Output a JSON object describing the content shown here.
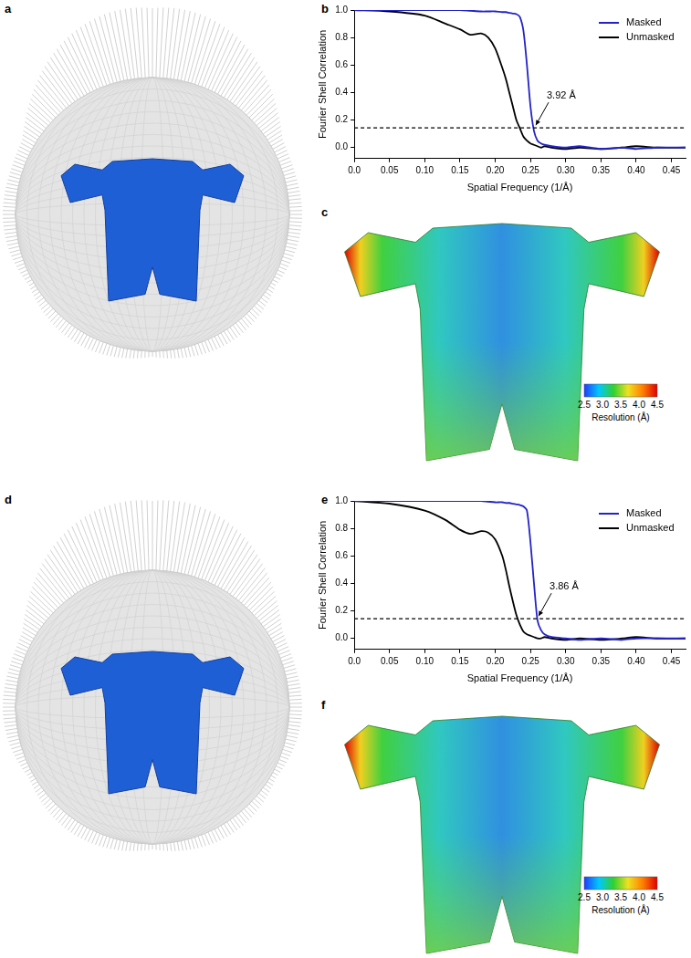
{
  "chart_data": [
    {
      "type": "line",
      "panel": "b",
      "x_label": "Spatial Frequency (1/Å)",
      "y_label": "Fourier Shell Correlation",
      "x": [
        0,
        0.05,
        0.1,
        0.13,
        0.15,
        0.165,
        0.18,
        0.19,
        0.2,
        0.21,
        0.215,
        0.22,
        0.225,
        0.23,
        0.235,
        0.24,
        0.245,
        0.25,
        0.255,
        0.26,
        0.265,
        0.27,
        0.28,
        0.3,
        0.32,
        0.35,
        0.38,
        0.4,
        0.43,
        0.47
      ],
      "series": [
        {
          "name": "Masked",
          "color": "#2323c8",
          "values": [
            1.0,
            1.0,
            1.0,
            1.0,
            1.0,
            0.995,
            0.99,
            0.99,
            0.99,
            0.985,
            0.985,
            0.98,
            0.975,
            0.97,
            0.95,
            0.85,
            0.6,
            0.3,
            0.12,
            0.05,
            0.03,
            0.02,
            0.01,
            0.0,
            0.01,
            -0.01,
            0.0,
            -0.01,
            0.0,
            0.0
          ]
        },
        {
          "name": "Unmasked",
          "color": "#000000",
          "values": [
            1.0,
            0.99,
            0.96,
            0.9,
            0.86,
            0.82,
            0.83,
            0.8,
            0.72,
            0.58,
            0.5,
            0.4,
            0.3,
            0.2,
            0.14,
            0.08,
            0.05,
            0.03,
            0.02,
            0.01,
            0.0,
            0.01,
            0.0,
            -0.01,
            0.0,
            -0.01,
            0.0,
            0.01,
            0.0,
            0.0
          ]
        }
      ],
      "xlim": [
        0,
        0.47
      ],
      "xticks": [
        {
          "value": 0,
          "label": "0.0"
        },
        0.05,
        {
          "value": 0.1,
          "label": "0.10"
        },
        0.15,
        {
          "value": 0.2,
          "label": "0.20"
        },
        0.25,
        {
          "value": 0.3,
          "label": "0.30"
        },
        0.35,
        {
          "value": 0.4,
          "label": "0.40"
        },
        0.45
      ],
      "ylim": [
        -0.08,
        1.0
      ],
      "yticks": [
        {
          "value": 0,
          "label": "0.0"
        },
        0.2,
        0.4,
        0.6,
        0.8,
        {
          "value": 1,
          "label": "1.0"
        }
      ],
      "grid": false,
      "legend": "top-right",
      "threshold": 0.143,
      "annotation": {
        "text": "3.92 Å",
        "x": 0.255,
        "y": 0.143
      }
    },
    {
      "type": "line",
      "panel": "e",
      "x_label": "Spatial Frequency (1/Å)",
      "y_label": "Fourier Shell Correlation",
      "x": [
        0,
        0.05,
        0.1,
        0.13,
        0.15,
        0.165,
        0.18,
        0.19,
        0.2,
        0.21,
        0.215,
        0.22,
        0.225,
        0.23,
        0.235,
        0.24,
        0.245,
        0.25,
        0.255,
        0.26,
        0.265,
        0.27,
        0.28,
        0.3,
        0.32,
        0.35,
        0.38,
        0.4,
        0.43,
        0.47
      ],
      "series": [
        {
          "name": "Masked",
          "color": "#2323c8",
          "values": [
            1.0,
            1.0,
            1.0,
            1.0,
            1.0,
            1.0,
            1.0,
            0.995,
            0.99,
            0.99,
            0.985,
            0.985,
            0.98,
            0.975,
            0.97,
            0.96,
            0.93,
            0.7,
            0.4,
            0.13,
            0.06,
            0.03,
            0.01,
            0.0,
            -0.01,
            0.0,
            -0.01,
            0.0,
            0.0,
            0.0
          ]
        },
        {
          "name": "Unmasked",
          "color": "#000000",
          "values": [
            1.0,
            0.98,
            0.93,
            0.86,
            0.79,
            0.76,
            0.78,
            0.77,
            0.72,
            0.6,
            0.5,
            0.38,
            0.27,
            0.17,
            0.1,
            0.05,
            0.03,
            0.02,
            0.01,
            0.0,
            0.0,
            0.01,
            0.0,
            -0.01,
            0.0,
            -0.01,
            0.0,
            0.01,
            0.0,
            0.0
          ]
        }
      ],
      "xlim": [
        0,
        0.47
      ],
      "xticks": [
        {
          "value": 0,
          "label": "0.0"
        },
        0.05,
        {
          "value": 0.1,
          "label": "0.10"
        },
        0.15,
        {
          "value": 0.2,
          "label": "0.20"
        },
        0.25,
        {
          "value": 0.3,
          "label": "0.30"
        },
        0.35,
        {
          "value": 0.4,
          "label": "0.40"
        },
        0.45
      ],
      "ylim": [
        -0.08,
        1.0
      ],
      "yticks": [
        {
          "value": 0,
          "label": "0.0"
        },
        0.2,
        0.4,
        0.6,
        0.8,
        {
          "value": 1,
          "label": "1.0"
        }
      ],
      "grid": false,
      "legend": "top-right",
      "threshold": 0.143,
      "annotation": {
        "text": "3.86 Å",
        "x": 0.259,
        "y": 0.143
      }
    }
  ],
  "images": [
    {
      "panel": "a"
    },
    {
      "panel": "c",
      "colorbar": {
        "range": [
          2.5,
          4.5
        ],
        "ticks": [
          2.5,
          {
            "value": 3,
            "label": "3.0"
          },
          3.5,
          {
            "value": 4,
            "label": "4.0"
          },
          4.5
        ],
        "label": "Resolution (Å)"
      }
    },
    {
      "panel": "d"
    },
    {
      "panel": "f",
      "colorbar": {
        "range": [
          2.5,
          4.5
        ],
        "ticks": [
          2.5,
          {
            "value": 3,
            "label": "3.0"
          },
          3.5,
          {
            "value": 4,
            "label": "4.0"
          },
          4.5
        ],
        "label": "Resolution (Å)"
      }
    }
  ]
}
